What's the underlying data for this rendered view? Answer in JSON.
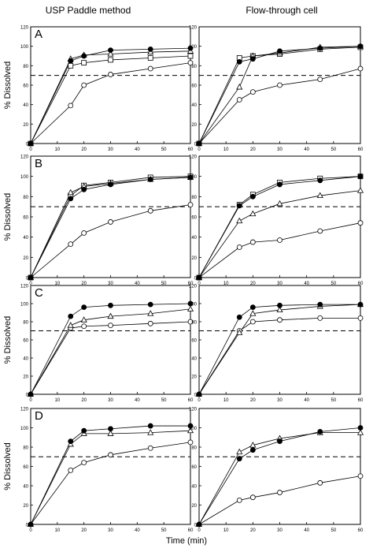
{
  "column_titles": [
    "USP Paddle method",
    "Flow-through cell"
  ],
  "xlabel": "Time (min)",
  "ylabel": "% Dissolved",
  "reference_line": 70,
  "chart_data": [
    {
      "type": "line",
      "panel_label": "A",
      "method": "USP Paddle method",
      "xlim": [
        0,
        60
      ],
      "ylim": [
        0,
        120
      ],
      "xticks": [
        0,
        10,
        20,
        30,
        40,
        50,
        60
      ],
      "yticks": [
        0,
        20,
        40,
        60,
        80,
        100,
        120
      ],
      "ylabel": "% Dissolved",
      "reference_line": 70,
      "series": [
        {
          "marker": "filled-circle",
          "x": [
            0,
            15,
            20,
            30,
            45,
            60
          ],
          "y": [
            0,
            85,
            90,
            96,
            97,
            98
          ]
        },
        {
          "marker": "triangle",
          "x": [
            0,
            15,
            20,
            30,
            45,
            60
          ],
          "y": [
            0,
            87,
            91,
            92,
            94,
            95
          ]
        },
        {
          "marker": "square",
          "x": [
            0,
            15,
            20,
            30,
            45,
            60
          ],
          "y": [
            0,
            80,
            83,
            86,
            88,
            90
          ]
        },
        {
          "marker": "open-circle",
          "x": [
            0,
            15,
            20,
            30,
            45,
            60
          ],
          "y": [
            0,
            39,
            60,
            71,
            77,
            83
          ]
        }
      ]
    },
    {
      "type": "line",
      "panel_label": "",
      "method": "Flow-through cell",
      "xlim": [
        0,
        60
      ],
      "ylim": [
        0,
        120
      ],
      "xticks": [
        0,
        10,
        20,
        30,
        40,
        50,
        60
      ],
      "yticks": [
        0,
        20,
        40,
        60,
        80,
        100,
        120
      ],
      "reference_line": 70,
      "series": [
        {
          "marker": "filled-circle",
          "x": [
            0,
            15,
            20,
            30,
            45,
            60
          ],
          "y": [
            0,
            84,
            87,
            95,
            98,
            100
          ]
        },
        {
          "marker": "triangle",
          "x": [
            0,
            15,
            20,
            30,
            45,
            60
          ],
          "y": [
            0,
            58,
            90,
            93,
            99,
            100
          ]
        },
        {
          "marker": "square",
          "x": [
            0,
            15,
            20,
            30,
            45,
            60
          ],
          "y": [
            0,
            88,
            90,
            92,
            97,
            99
          ]
        },
        {
          "marker": "open-circle",
          "x": [
            0,
            15,
            20,
            30,
            45,
            60
          ],
          "y": [
            0,
            45,
            53,
            60,
            66,
            77
          ]
        }
      ]
    },
    {
      "type": "line",
      "panel_label": "B",
      "method": "USP Paddle method",
      "xlim": [
        0,
        60
      ],
      "ylim": [
        0,
        120
      ],
      "xticks": [
        0,
        10,
        20,
        30,
        40,
        50,
        60
      ],
      "yticks": [
        0,
        20,
        40,
        60,
        80,
        100,
        120
      ],
      "ylabel": "% Dissolved",
      "reference_line": 70,
      "series": [
        {
          "marker": "filled-circle",
          "x": [
            0,
            15,
            20,
            30,
            45,
            60
          ],
          "y": [
            0,
            78,
            87,
            92,
            97,
            99
          ]
        },
        {
          "marker": "triangle",
          "x": [
            0,
            15,
            20,
            30,
            45,
            60
          ],
          "y": [
            0,
            84,
            90,
            93,
            97,
            99
          ]
        },
        {
          "marker": "square",
          "x": [
            0,
            15,
            20,
            30,
            45,
            60
          ],
          "y": [
            0,
            81,
            91,
            94,
            99,
            100
          ]
        },
        {
          "marker": "open-circle",
          "x": [
            0,
            15,
            20,
            30,
            45,
            60
          ],
          "y": [
            0,
            33,
            44,
            55,
            66,
            72
          ]
        }
      ]
    },
    {
      "type": "line",
      "panel_label": "",
      "method": "Flow-through cell",
      "xlim": [
        0,
        60
      ],
      "ylim": [
        0,
        120
      ],
      "xticks": [
        0,
        10,
        20,
        30,
        40,
        50,
        60
      ],
      "yticks": [
        0,
        20,
        40,
        60,
        80,
        100,
        120
      ],
      "reference_line": 70,
      "series": [
        {
          "marker": "filled-circle",
          "x": [
            0,
            15,
            20,
            30,
            45,
            60
          ],
          "y": [
            0,
            71,
            80,
            92,
            96,
            100
          ]
        },
        {
          "marker": "triangle",
          "x": [
            0,
            15,
            20,
            30,
            45,
            60
          ],
          "y": [
            0,
            56,
            63,
            73,
            81,
            86
          ]
        },
        {
          "marker": "square",
          "x": [
            0,
            15,
            20,
            30,
            45,
            60
          ],
          "y": [
            0,
            72,
            82,
            94,
            98,
            100
          ]
        },
        {
          "marker": "open-circle",
          "x": [
            0,
            15,
            20,
            30,
            45,
            60
          ],
          "y": [
            0,
            30,
            35,
            37,
            46,
            54
          ]
        }
      ]
    },
    {
      "type": "line",
      "panel_label": "C",
      "method": "USP Paddle method",
      "xlim": [
        0,
        60
      ],
      "ylim": [
        0,
        120
      ],
      "xticks": [
        0,
        10,
        20,
        30,
        40,
        50,
        60
      ],
      "yticks": [
        0,
        20,
        40,
        60,
        80,
        100,
        120
      ],
      "ylabel": "% Dissolved",
      "reference_line": 70,
      "series": [
        {
          "marker": "filled-circle",
          "x": [
            0,
            15,
            20,
            30,
            45,
            60
          ],
          "y": [
            0,
            86,
            96,
            98,
            99,
            100
          ]
        },
        {
          "marker": "triangle",
          "x": [
            0,
            15,
            20,
            30,
            45,
            60
          ],
          "y": [
            0,
            76,
            82,
            86,
            89,
            94
          ]
        },
        {
          "marker": "open-circle",
          "x": [
            0,
            15,
            20,
            30,
            45,
            60
          ],
          "y": [
            0,
            73,
            75,
            76,
            78,
            80
          ]
        }
      ]
    },
    {
      "type": "line",
      "panel_label": "",
      "method": "Flow-through cell",
      "xlim": [
        0,
        60
      ],
      "ylim": [
        0,
        120
      ],
      "xticks": [
        0,
        10,
        20,
        30,
        40,
        50,
        60
      ],
      "yticks": [
        0,
        20,
        40,
        60,
        80,
        100,
        120
      ],
      "reference_line": 70,
      "series": [
        {
          "marker": "filled-circle",
          "x": [
            0,
            15,
            20,
            30,
            45,
            60
          ],
          "y": [
            0,
            85,
            96,
            98,
            99,
            99
          ]
        },
        {
          "marker": "triangle",
          "x": [
            0,
            15,
            20,
            30,
            45,
            60
          ],
          "y": [
            0,
            68,
            89,
            93,
            97,
            99
          ]
        },
        {
          "marker": "open-circle",
          "x": [
            0,
            15,
            20,
            30,
            45,
            60
          ],
          "y": [
            0,
            70,
            80,
            82,
            84,
            84
          ]
        }
      ]
    },
    {
      "type": "line",
      "panel_label": "D",
      "method": "USP Paddle method",
      "xlim": [
        0,
        60
      ],
      "ylim": [
        0,
        120
      ],
      "xticks": [
        0,
        10,
        20,
        30,
        40,
        50,
        60
      ],
      "yticks": [
        0,
        20,
        40,
        60,
        80,
        100,
        120
      ],
      "ylabel": "% Dissolved",
      "reference_line": 70,
      "series": [
        {
          "marker": "filled-circle",
          "x": [
            0,
            15,
            20,
            30,
            45,
            60
          ],
          "y": [
            0,
            86,
            97,
            99,
            102,
            102
          ]
        },
        {
          "marker": "triangle",
          "x": [
            0,
            15,
            20,
            30,
            45,
            60
          ],
          "y": [
            0,
            83,
            94,
            94,
            95,
            97
          ]
        },
        {
          "marker": "open-circle",
          "x": [
            0,
            15,
            20,
            30,
            45,
            60
          ],
          "y": [
            0,
            56,
            64,
            72,
            79,
            85
          ]
        }
      ]
    },
    {
      "type": "line",
      "panel_label": "",
      "method": "Flow-through cell",
      "xlim": [
        0,
        60
      ],
      "ylim": [
        0,
        120
      ],
      "xticks": [
        0,
        10,
        20,
        30,
        40,
        50,
        60
      ],
      "yticks": [
        0,
        20,
        40,
        60,
        80,
        100,
        120
      ],
      "xlabel": "Time (min)",
      "reference_line": 70,
      "series": [
        {
          "marker": "filled-circle",
          "x": [
            0,
            15,
            20,
            30,
            45,
            60
          ],
          "y": [
            0,
            68,
            77,
            86,
            96,
            100
          ]
        },
        {
          "marker": "triangle",
          "x": [
            0,
            15,
            20,
            30,
            45,
            60
          ],
          "y": [
            0,
            75,
            82,
            89,
            95,
            95
          ]
        },
        {
          "marker": "open-circle",
          "x": [
            0,
            15,
            20,
            30,
            45,
            60
          ],
          "y": [
            0,
            25,
            28,
            33,
            43,
            50
          ]
        }
      ]
    }
  ]
}
